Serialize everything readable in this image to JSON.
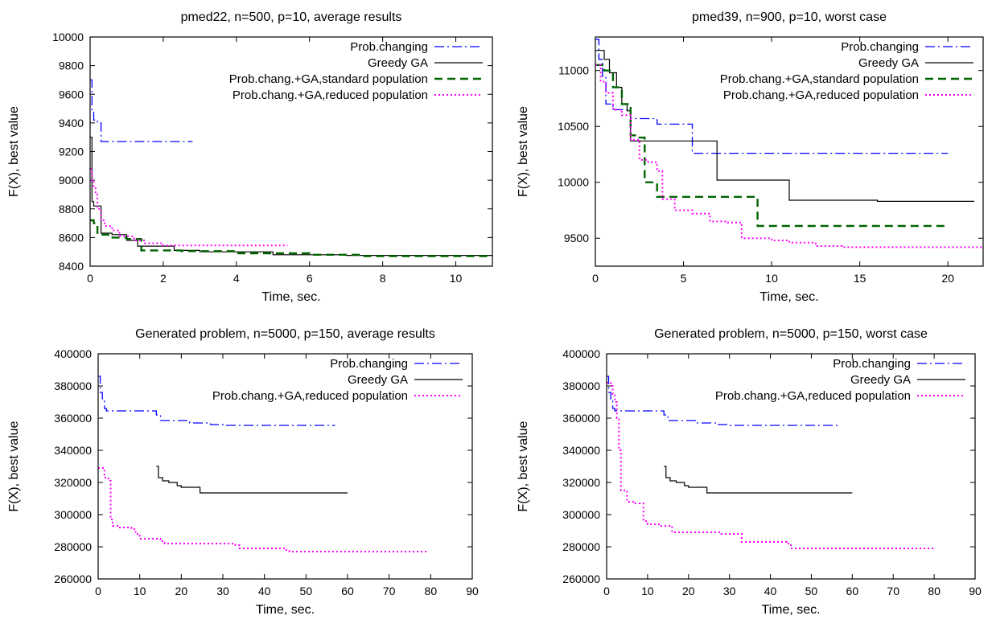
{
  "chart_data": [
    {
      "type": "line",
      "title": "pmed22, n=500, p=10, average results",
      "xlabel": "Time, sec.",
      "ylabel": "F(X), best value",
      "xlim": [
        0,
        11
      ],
      "ylim": [
        8400,
        10000
      ],
      "xticks": [
        0,
        2,
        4,
        6,
        8,
        10
      ],
      "yticks": [
        8400,
        8600,
        8800,
        9000,
        9200,
        9400,
        9600,
        9800,
        10000
      ],
      "legend_position": "top-right",
      "series": [
        {
          "name": "Prob.changing",
          "color": "#0000ff",
          "dash": "dashdot",
          "x": [
            0,
            0.05,
            0.1,
            0.2,
            0.3,
            2.8
          ],
          "y": [
            9700,
            9480,
            9420,
            9400,
            9270,
            9270
          ]
        },
        {
          "name": "Greedy GA",
          "color": "#000000",
          "dash": "solid",
          "x": [
            0,
            0.05,
            0.1,
            0.3,
            0.6,
            1.0,
            1.3,
            2.3,
            3.0,
            5.0,
            7.0,
            11.0
          ],
          "y": [
            9300,
            8850,
            8820,
            8630,
            8620,
            8580,
            8540,
            8510,
            8500,
            8480,
            8475,
            8470
          ]
        },
        {
          "name": "Prob.chang.+GA,standard population",
          "color": "#006400",
          "dash": "dashed",
          "x": [
            0,
            0.1,
            0.2,
            0.5,
            1.0,
            1.4,
            2.5,
            4.0,
            6.0,
            7.5,
            11.0
          ],
          "y": [
            8720,
            8700,
            8620,
            8600,
            8590,
            8510,
            8505,
            8490,
            8480,
            8470,
            8470
          ]
        },
        {
          "name": "Prob.chang.+GA,reduced population",
          "color": "#ff00ff",
          "dash": "dotted",
          "x": [
            0,
            0.05,
            0.1,
            0.15,
            0.2,
            0.3,
            0.4,
            0.6,
            0.8,
            1.2,
            1.5,
            2.0,
            5.4
          ],
          "y": [
            9080,
            9000,
            8950,
            8900,
            8800,
            8720,
            8680,
            8650,
            8610,
            8580,
            8560,
            8545,
            8545
          ]
        }
      ]
    },
    {
      "type": "line",
      "title": "pmed39, n=900, p=10, worst case",
      "xlabel": "Time, sec.",
      "ylabel": "F(X), best value",
      "xlim": [
        0,
        22
      ],
      "ylim": [
        9250,
        11300
      ],
      "xticks": [
        0,
        5,
        10,
        15,
        20
      ],
      "yticks": [
        9500,
        10000,
        10500,
        11000
      ],
      "legend_position": "top-right",
      "series": [
        {
          "name": "Prob.changing",
          "color": "#0000ff",
          "dash": "dashdot",
          "x": [
            0,
            0.2,
            0.4,
            0.6,
            1.0,
            2.0,
            3.5,
            5.5,
            20.0
          ],
          "y": [
            11280,
            11100,
            10950,
            10700,
            10650,
            10570,
            10520,
            10260,
            10260
          ]
        },
        {
          "name": "Greedy GA",
          "color": "#000000",
          "dash": "solid",
          "x": [
            0,
            0.5,
            0.8,
            1.2,
            1.5,
            1.8,
            2.0,
            6.9,
            11.0,
            16.0,
            21.5
          ],
          "y": [
            11180,
            11100,
            10980,
            10850,
            10700,
            10640,
            10370,
            10020,
            9840,
            9830,
            9830
          ]
        },
        {
          "name": "Prob.chang.+GA,standard population",
          "color": "#006400",
          "dash": "dashed",
          "x": [
            0,
            0.5,
            1.0,
            1.5,
            2.0,
            2.5,
            2.8,
            3.5,
            9.2,
            20.0
          ],
          "y": [
            11050,
            11000,
            10850,
            10700,
            10420,
            10400,
            10000,
            9870,
            9610,
            9610
          ]
        },
        {
          "name": "Prob.chang.+GA,reduced population",
          "color": "#ff00ff",
          "dash": "dotted",
          "x": [
            0,
            0.3,
            0.6,
            1.0,
            1.5,
            2.0,
            2.5,
            3.0,
            3.5,
            3.8,
            4.5,
            5.5,
            6.5,
            7.5,
            8.3,
            9.0,
            10.0,
            11.0,
            12.5,
            14.0,
            22.0
          ],
          "y": [
            11050,
            10900,
            10800,
            10650,
            10600,
            10380,
            10200,
            10180,
            10100,
            9850,
            9750,
            9720,
            9650,
            9640,
            9500,
            9500,
            9480,
            9460,
            9430,
            9420,
            9420
          ]
        }
      ]
    },
    {
      "type": "line",
      "title": "Generated problem, n=5000, p=150, average results",
      "xlabel": "Time, sec.",
      "ylabel": "F(X), best value",
      "xlim": [
        0,
        90
      ],
      "ylim": [
        260000,
        400000
      ],
      "xticks": [
        0,
        10,
        20,
        30,
        40,
        50,
        60,
        70,
        80,
        90
      ],
      "yticks": [
        260000,
        280000,
        300000,
        320000,
        340000,
        360000,
        380000,
        400000
      ],
      "legend_position": "top-right",
      "series": [
        {
          "name": "Prob.changing",
          "color": "#0000ff",
          "dash": "dashdot",
          "x": [
            0,
            0.5,
            1.0,
            1.5,
            2.0,
            14.0,
            15.0,
            22.0,
            27.0,
            30.0,
            57.0
          ],
          "y": [
            386000,
            376000,
            372000,
            366000,
            364500,
            362000,
            358500,
            357000,
            356000,
            355500,
            355500
          ]
        },
        {
          "name": "Greedy GA",
          "color": "#000000",
          "dash": "solid",
          "x": [
            14.0,
            14.5,
            15.5,
            17.0,
            19.0,
            20.0,
            24.5,
            60.0
          ],
          "y": [
            330000,
            323000,
            321000,
            320000,
            318000,
            317000,
            313500,
            313500
          ]
        },
        {
          "name": "Prob.chang.+GA,reduced population",
          "color": "#ff00ff",
          "dash": "dotted",
          "x": [
            0,
            1.5,
            2.5,
            3.0,
            3.5,
            5.0,
            8.0,
            9.0,
            10.0,
            15.0,
            16.0,
            33.0,
            34.0,
            45.0,
            46.0,
            79.0
          ],
          "y": [
            329000,
            323000,
            321000,
            297000,
            293000,
            292000,
            291000,
            288000,
            285000,
            283500,
            282000,
            281000,
            279000,
            278000,
            277000,
            277000
          ]
        }
      ]
    },
    {
      "type": "line",
      "title": "Generated problem, n=5000, p=150, worst case",
      "xlabel": "Time, sec.",
      "ylabel": "F(X), best value",
      "xlim": [
        0,
        90
      ],
      "ylim": [
        260000,
        400000
      ],
      "xticks": [
        0,
        10,
        20,
        30,
        40,
        50,
        60,
        70,
        80,
        90
      ],
      "yticks": [
        260000,
        280000,
        300000,
        320000,
        340000,
        360000,
        380000,
        400000
      ],
      "legend_position": "top-right",
      "series": [
        {
          "name": "Prob.changing",
          "color": "#0000ff",
          "dash": "dashdot",
          "x": [
            0,
            0.5,
            1.0,
            1.5,
            2.0,
            14.0,
            15.0,
            22.0,
            27.0,
            30.0,
            57.0
          ],
          "y": [
            386000,
            376000,
            372000,
            366000,
            364500,
            362000,
            358500,
            357000,
            356000,
            355500,
            355500
          ]
        },
        {
          "name": "Greedy GA",
          "color": "#000000",
          "dash": "solid",
          "x": [
            14.0,
            14.5,
            15.5,
            17.0,
            19.0,
            20.0,
            24.5,
            60.0
          ],
          "y": [
            330000,
            323000,
            321000,
            320000,
            318000,
            317000,
            313500,
            313500
          ]
        },
        {
          "name": "Prob.chang.+GA,reduced population",
          "color": "#ff00ff",
          "dash": "dotted",
          "x": [
            0,
            1.0,
            1.5,
            2.0,
            2.5,
            3.0,
            3.5,
            5.0,
            7.0,
            9.0,
            10.0,
            13.0,
            16.0,
            28.0,
            33.0,
            44.0,
            45.0,
            80.0
          ],
          "y": [
            382000,
            380000,
            375000,
            370000,
            360000,
            340000,
            315000,
            308000,
            307000,
            296000,
            294000,
            293000,
            289000,
            288000,
            283000,
            282000,
            279000,
            279000
          ]
        }
      ]
    }
  ]
}
